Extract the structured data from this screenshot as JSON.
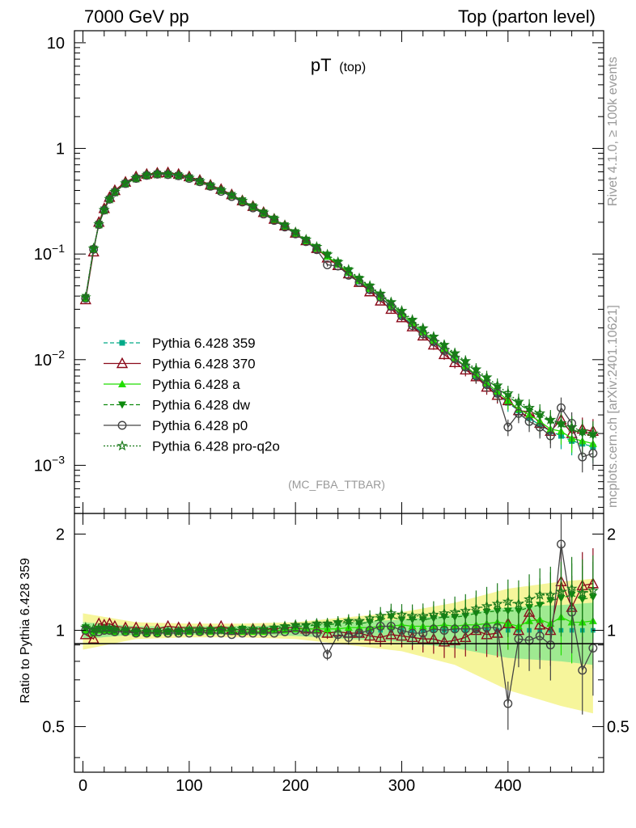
{
  "header": {
    "left": "7000 GeV pp",
    "right": "Top (parton level)"
  },
  "side_labels": {
    "rivet": "Rivet 4.1.0, ≥ 100k events",
    "mcplots": "mcplots.cern.ch [arXiv:2401.10621]"
  },
  "chart_data": [
    {
      "type": "line",
      "title": "pT",
      "title_sub": "(top)",
      "watermark": "(MC_FBA_TTBAR)",
      "yscale": "log",
      "ylim": [
        0.00035,
        13
      ],
      "xlim": [
        -8,
        490
      ],
      "y_ticks": [
        {
          "value": 10,
          "base": "10",
          "exp": ""
        },
        {
          "value": 1,
          "base": "1",
          "exp": ""
        },
        {
          "value": 0.1,
          "base": "10",
          "exp": "−1"
        },
        {
          "value": 0.01,
          "base": "10",
          "exp": "−2"
        },
        {
          "value": 0.001,
          "base": "10",
          "exp": "−3"
        }
      ],
      "legend_position": "lower-left",
      "x": [
        2.5,
        10,
        15,
        20,
        25,
        30,
        40,
        50,
        60,
        70,
        80,
        90,
        100,
        110,
        120,
        130,
        140,
        150,
        160,
        170,
        180,
        190,
        200,
        210,
        220,
        230,
        240,
        250,
        260,
        270,
        280,
        290,
        300,
        310,
        320,
        330,
        340,
        350,
        360,
        370,
        380,
        390,
        400,
        410,
        420,
        430,
        440,
        450,
        460,
        470,
        480
      ],
      "series": [
        {
          "name": "Pythia 6.428 359",
          "color": "#00aa88",
          "marker": "square",
          "dash": "5,3",
          "values": [
            0.038,
            0.112,
            0.19,
            0.26,
            0.33,
            0.39,
            0.47,
            0.53,
            0.565,
            0.58,
            0.575,
            0.56,
            0.53,
            0.49,
            0.445,
            0.4,
            0.36,
            0.318,
            0.28,
            0.245,
            0.212,
            0.182,
            0.155,
            0.132,
            0.112,
            0.094,
            0.079,
            0.066,
            0.055,
            0.046,
            0.038,
            0.031,
            0.026,
            0.0215,
            0.0178,
            0.0147,
            0.0122,
            0.0101,
            0.0084,
            0.0069,
            0.0057,
            0.0047,
            0.0039,
            0.0033,
            0.0028,
            0.0024,
            0.0021,
            0.0019,
            0.0017,
            0.0016,
            0.0015
          ]
        },
        {
          "name": "Pythia 6.428 370",
          "color": "#8b0a1a",
          "marker": "open-triangle",
          "dash": "",
          "values": [
            0.037,
            0.105,
            0.2,
            0.27,
            0.345,
            0.4,
            0.48,
            0.54,
            0.57,
            0.585,
            0.59,
            0.57,
            0.54,
            0.5,
            0.45,
            0.41,
            0.365,
            0.32,
            0.283,
            0.248,
            0.214,
            0.185,
            0.158,
            0.134,
            0.113,
            0.092,
            0.078,
            0.065,
            0.054,
            0.044,
            0.036,
            0.03,
            0.025,
            0.0205,
            0.0168,
            0.0138,
            0.0112,
            0.0094,
            0.008,
            0.0069,
            0.0055,
            0.0046,
            0.0041,
            0.0033,
            0.0032,
            0.0025,
            0.0021,
            0.0027,
            0.002,
            0.0022,
            0.0021
          ]
        },
        {
          "name": "Pythia 6.428 a",
          "color": "#22dd00",
          "marker": "triangle",
          "dash": "",
          "values": [
            0.038,
            0.11,
            0.19,
            0.26,
            0.33,
            0.385,
            0.465,
            0.52,
            0.555,
            0.57,
            0.568,
            0.553,
            0.525,
            0.487,
            0.442,
            0.398,
            0.357,
            0.316,
            0.278,
            0.243,
            0.212,
            0.183,
            0.157,
            0.133,
            0.113,
            0.095,
            0.08,
            0.067,
            0.056,
            0.047,
            0.039,
            0.032,
            0.027,
            0.0222,
            0.0183,
            0.0152,
            0.0127,
            0.0104,
            0.0087,
            0.0072,
            0.006,
            0.005,
            0.0041,
            0.0034,
            0.003,
            0.0026,
            0.0022,
            0.0021,
            0.0018,
            0.0017,
            0.0016
          ]
        },
        {
          "name": "Pythia 6.428 dw",
          "color": "#0e8a0e",
          "marker": "down-triangle",
          "dash": "5,3",
          "values": [
            0.039,
            0.112,
            0.192,
            0.262,
            0.332,
            0.388,
            0.468,
            0.523,
            0.558,
            0.572,
            0.57,
            0.555,
            0.528,
            0.49,
            0.445,
            0.401,
            0.36,
            0.32,
            0.281,
            0.246,
            0.215,
            0.186,
            0.16,
            0.136,
            0.116,
            0.098,
            0.083,
            0.07,
            0.058,
            0.049,
            0.041,
            0.034,
            0.028,
            0.0232,
            0.0192,
            0.016,
            0.0134,
            0.0111,
            0.0093,
            0.0078,
            0.0065,
            0.0054,
            0.0045,
            0.0038,
            0.0033,
            0.0029,
            0.0026,
            0.0024,
            0.0022,
            0.002,
            0.0019
          ]
        },
        {
          "name": "Pythia 6.428 p0",
          "color": "#444444",
          "marker": "open-circle",
          "dash": "",
          "values": [
            0.038,
            0.111,
            0.19,
            0.26,
            0.33,
            0.385,
            0.465,
            0.52,
            0.555,
            0.57,
            0.565,
            0.55,
            0.52,
            0.483,
            0.438,
            0.392,
            0.35,
            0.31,
            0.273,
            0.239,
            0.208,
            0.18,
            0.155,
            0.131,
            0.11,
            0.079,
            0.077,
            0.063,
            0.054,
            0.046,
            0.039,
            0.032,
            0.026,
            0.021,
            0.0175,
            0.0148,
            0.0122,
            0.0102,
            0.0085,
            0.007,
            0.0058,
            0.0048,
            0.0023,
            0.0031,
            0.0026,
            0.0023,
            0.0019,
            0.0035,
            0.0025,
            0.0012,
            0.0013
          ]
        },
        {
          "name": "Pythia 6.428 pro-q2o",
          "color": "#1a7a1a",
          "marker": "star",
          "dash": "2,2",
          "values": [
            0.039,
            0.113,
            0.192,
            0.262,
            0.332,
            0.388,
            0.468,
            0.523,
            0.558,
            0.572,
            0.57,
            0.555,
            0.528,
            0.49,
            0.445,
            0.401,
            0.36,
            0.32,
            0.282,
            0.247,
            0.216,
            0.187,
            0.161,
            0.137,
            0.117,
            0.099,
            0.084,
            0.071,
            0.059,
            0.05,
            0.042,
            0.035,
            0.029,
            0.0238,
            0.0198,
            0.0165,
            0.0138,
            0.0115,
            0.0097,
            0.0081,
            0.0068,
            0.0057,
            0.0048,
            0.004,
            0.0035,
            0.0031,
            0.0027,
            0.0025,
            0.0023,
            0.0021,
            0.002
          ]
        }
      ]
    },
    {
      "type": "line",
      "ylabel": "Ratio to Pythia 6.428 359",
      "ylim": [
        0.36,
        2.32
      ],
      "xlim": [
        -8,
        490
      ],
      "y_ticks": [
        0.5,
        1,
        2
      ],
      "x_ticks": [
        0,
        100,
        200,
        300,
        400
      ],
      "reference": 1,
      "band_note": "yellow = total uncertainty, green = statistical uncertainty of reference",
      "band_x": [
        0,
        50,
        100,
        150,
        200,
        250,
        300,
        350,
        400,
        450,
        480
      ],
      "band_outer": [
        0.13,
        0.06,
        0.05,
        0.05,
        0.06,
        0.1,
        0.14,
        0.22,
        0.35,
        0.42,
        0.45
      ],
      "band_inner": [
        0.06,
        0.03,
        0.03,
        0.03,
        0.04,
        0.06,
        0.08,
        0.12,
        0.18,
        0.2,
        0.22
      ],
      "x": [
        2.5,
        10,
        15,
        20,
        25,
        30,
        40,
        50,
        60,
        70,
        80,
        90,
        100,
        110,
        120,
        130,
        140,
        150,
        160,
        170,
        180,
        190,
        200,
        210,
        220,
        230,
        240,
        250,
        260,
        270,
        280,
        290,
        300,
        310,
        320,
        330,
        340,
        350,
        360,
        370,
        380,
        390,
        400,
        410,
        420,
        430,
        440,
        450,
        460,
        470,
        480
      ],
      "series": [
        {
          "name": "Pythia 6.428 370",
          "color": "#8b0a1a",
          "marker": "open-triangle",
          "dash": "",
          "values": [
            0.97,
            0.94,
            1.05,
            1.04,
            1.05,
            1.03,
            1.02,
            1.02,
            1.01,
            1.01,
            1.03,
            1.02,
            1.02,
            1.02,
            1.01,
            1.03,
            1.01,
            1.0,
            1.01,
            1.01,
            1.01,
            1.02,
            1.02,
            1.01,
            1.01,
            0.98,
            0.99,
            0.98,
            0.98,
            0.96,
            0.95,
            0.97,
            0.96,
            0.95,
            0.94,
            0.94,
            0.92,
            0.93,
            0.95,
            1.0,
            0.97,
            0.98,
            1.05,
            1.0,
            1.14,
            1.04,
            1.0,
            1.42,
            1.18,
            1.38,
            1.4
          ]
        },
        {
          "name": "Pythia 6.428 a",
          "color": "#22dd00",
          "marker": "triangle",
          "dash": "",
          "values": [
            1.0,
            0.98,
            1.0,
            1.0,
            1.0,
            0.99,
            0.99,
            0.98,
            0.98,
            0.98,
            0.99,
            0.99,
            0.99,
            0.99,
            0.99,
            1.0,
            0.99,
            0.99,
            0.99,
            0.99,
            1.0,
            1.0,
            1.01,
            1.01,
            1.01,
            1.01,
            1.01,
            1.02,
            1.02,
            1.02,
            1.03,
            1.03,
            1.04,
            1.03,
            1.03,
            1.03,
            1.04,
            1.03,
            1.04,
            1.04,
            1.05,
            1.06,
            1.05,
            1.03,
            1.07,
            1.08,
            1.05,
            1.1,
            1.06,
            1.06,
            1.07
          ]
        },
        {
          "name": "Pythia 6.428 dw",
          "color": "#0e8a0e",
          "marker": "down-triangle",
          "dash": "5,3",
          "values": [
            1.02,
            1.0,
            1.01,
            1.01,
            1.01,
            1.0,
            1.0,
            0.99,
            0.99,
            0.99,
            0.99,
            0.99,
            1.0,
            1.0,
            1.0,
            1.0,
            1.0,
            1.01,
            1.0,
            1.0,
            1.01,
            1.02,
            1.03,
            1.03,
            1.04,
            1.04,
            1.05,
            1.06,
            1.05,
            1.06,
            1.08,
            1.1,
            1.08,
            1.08,
            1.08,
            1.09,
            1.1,
            1.1,
            1.11,
            1.13,
            1.14,
            1.15,
            1.15,
            1.15,
            1.18,
            1.2,
            1.24,
            1.26,
            1.29,
            1.25,
            1.27
          ]
        },
        {
          "name": "Pythia 6.428 p0",
          "color": "#444444",
          "marker": "open-circle",
          "dash": "",
          "values": [
            1.0,
            0.99,
            0.99,
            1.0,
            1.0,
            0.99,
            0.99,
            0.98,
            0.98,
            0.98,
            0.98,
            0.98,
            0.98,
            0.99,
            0.98,
            0.98,
            0.97,
            0.98,
            0.98,
            0.98,
            0.98,
            0.99,
            1.0,
            0.99,
            0.98,
            0.84,
            0.97,
            0.95,
            0.98,
            1.0,
            1.03,
            1.03,
            1.0,
            0.98,
            0.98,
            1.01,
            1.0,
            1.01,
            1.01,
            1.01,
            1.02,
            1.02,
            0.59,
            0.94,
            0.93,
            0.96,
            0.9,
            1.86,
            1.14,
            0.75,
            0.88
          ]
        },
        {
          "name": "Pythia 6.428 pro-q2o",
          "color": "#1a7a1a",
          "marker": "star",
          "dash": "2,2",
          "values": [
            1.02,
            1.01,
            1.01,
            1.01,
            1.01,
            1.0,
            1.0,
            0.99,
            0.99,
            0.99,
            0.99,
            0.99,
            1.0,
            1.0,
            1.0,
            1.0,
            1.0,
            1.01,
            1.01,
            1.01,
            1.02,
            1.03,
            1.04,
            1.04,
            1.05,
            1.05,
            1.06,
            1.07,
            1.07,
            1.09,
            1.11,
            1.13,
            1.12,
            1.11,
            1.11,
            1.12,
            1.13,
            1.14,
            1.15,
            1.17,
            1.19,
            1.21,
            1.23,
            1.21,
            1.25,
            1.29,
            1.29,
            1.32,
            1.35,
            1.31,
            1.33
          ]
        }
      ]
    }
  ]
}
